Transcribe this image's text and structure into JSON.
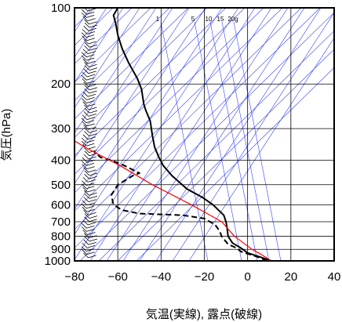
{
  "chart_data": {
    "type": "line",
    "title": "",
    "xlabel": "気温(実線), 露点(破線)",
    "ylabel": "気圧(hPa)",
    "xlim": [
      -80,
      40
    ],
    "ylim": [
      1000,
      100
    ],
    "y_scale": "log",
    "x_ticks": [
      -80,
      -60,
      -40,
      -20,
      0,
      20,
      40
    ],
    "y_ticks": [
      100,
      200,
      300,
      400,
      500,
      600,
      700,
      800,
      900,
      1000
    ],
    "mixing_ratio_labels": [
      "1",
      "5",
      "10",
      "15",
      "20g"
    ],
    "grid": true,
    "series": [
      {
        "role": "temperature",
        "style": "solid",
        "color": "#000000",
        "points": [
          [
            11,
            1000
          ],
          [
            5,
            960
          ],
          [
            0,
            930
          ],
          [
            -3,
            890
          ],
          [
            -7,
            850
          ],
          [
            -9,
            800
          ],
          [
            -9.5,
            740
          ],
          [
            -10,
            700
          ],
          [
            -11,
            660
          ],
          [
            -16,
            600
          ],
          [
            -21,
            560
          ],
          [
            -28,
            520
          ],
          [
            -35,
            460
          ],
          [
            -39,
            420
          ],
          [
            -41,
            390
          ],
          [
            -43,
            355
          ],
          [
            -44,
            320
          ],
          [
            -45,
            280
          ],
          [
            -47,
            255
          ],
          [
            -48,
            240
          ],
          [
            -49,
            210
          ],
          [
            -51,
            190
          ],
          [
            -55,
            165
          ],
          [
            -58,
            145
          ],
          [
            -60,
            128
          ],
          [
            -61,
            115
          ],
          [
            -62,
            107
          ],
          [
            -60,
            100
          ]
        ]
      },
      {
        "role": "dewpoint",
        "style": "dashed",
        "color": "#000000",
        "points": [
          [
            9,
            1000
          ],
          [
            4,
            960
          ],
          [
            -3,
            920
          ],
          [
            -5,
            890
          ],
          [
            -9,
            860
          ],
          [
            -12,
            800
          ],
          [
            -13,
            760
          ],
          [
            -15,
            720
          ],
          [
            -20,
            680
          ],
          [
            -30,
            660
          ],
          [
            -50,
            650
          ],
          [
            -58,
            630
          ],
          [
            -62,
            600
          ],
          [
            -63,
            550
          ],
          [
            -60,
            500
          ],
          [
            -53,
            460
          ],
          [
            -50,
            450
          ],
          [
            -57,
            420
          ],
          [
            -63,
            400
          ],
          [
            -68,
            390
          ],
          [
            -71,
            370
          ]
        ]
      },
      {
        "role": "parcel",
        "style": "solid",
        "color": "#ff0000",
        "points": [
          [
            11,
            1000
          ],
          [
            6,
            940
          ],
          [
            2,
            900
          ],
          [
            -6,
            800
          ],
          [
            -12,
            700
          ],
          [
            -26,
            600
          ],
          [
            -44,
            500
          ],
          [
            -59,
            420
          ],
          [
            -74,
            360
          ],
          [
            -84,
            320
          ]
        ]
      }
    ],
    "wind_barbs_column": "left edge, 100-1000 hPa"
  },
  "colors": {
    "background": "#ffffff",
    "grid": "#000000",
    "guide_lines": "#3340ff",
    "temperature": "#000000",
    "dewpoint": "#000000",
    "parcel": "#ff0000"
  }
}
